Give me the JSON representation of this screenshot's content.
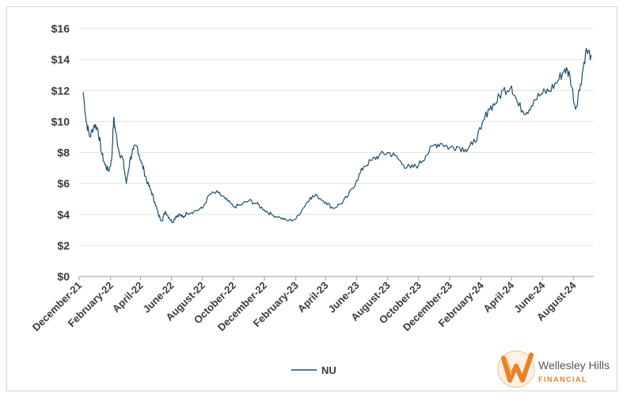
{
  "chart_data": {
    "type": "line",
    "ylim": [
      0,
      16
    ],
    "ytick_values": [
      0,
      2,
      4,
      6,
      8,
      10,
      12,
      14,
      16
    ],
    "ytick_labels": [
      "$0",
      "$2",
      "$4",
      "$6",
      "$8",
      "$10",
      "$12",
      "$14",
      "$16"
    ],
    "xtick_labels": [
      "December-21",
      "February-22",
      "April-22",
      "June-22",
      "August-22",
      "October-22",
      "December-22",
      "February-23",
      "April-23",
      "June-23",
      "August-23",
      "October-23",
      "December-23",
      "February-24",
      "April-24",
      "June-24",
      "August-24"
    ],
    "grid": "horizontal",
    "legend_position": "bottom-center",
    "line_color": "#1f4e6b",
    "series": [
      {
        "name": "NU",
        "x": [
          "2021-12-09",
          "2021-12-15",
          "2021-12-22",
          "2021-12-31",
          "2022-01-07",
          "2022-01-14",
          "2022-01-21",
          "2022-01-28",
          "2022-02-03",
          "2022-02-07",
          "2022-02-11",
          "2022-02-18",
          "2022-02-25",
          "2022-03-04",
          "2022-03-11",
          "2022-03-18",
          "2022-03-25",
          "2022-04-01",
          "2022-04-08",
          "2022-04-15",
          "2022-04-22",
          "2022-04-29",
          "2022-05-06",
          "2022-05-13",
          "2022-05-20",
          "2022-05-27",
          "2022-06-03",
          "2022-06-10",
          "2022-06-17",
          "2022-06-24",
          "2022-07-01",
          "2022-07-15",
          "2022-08-01",
          "2022-08-15",
          "2022-09-01",
          "2022-09-15",
          "2022-10-01",
          "2022-10-15",
          "2022-11-01",
          "2022-11-15",
          "2022-12-01",
          "2022-12-15",
          "2023-01-01",
          "2023-01-15",
          "2023-02-01",
          "2023-02-15",
          "2023-03-01",
          "2023-03-15",
          "2023-04-01",
          "2023-04-15",
          "2023-05-01",
          "2023-05-15",
          "2023-06-01",
          "2023-06-15",
          "2023-07-01",
          "2023-07-15",
          "2023-08-01",
          "2023-08-15",
          "2023-09-01",
          "2023-09-15",
          "2023-10-01",
          "2023-10-15",
          "2023-11-01",
          "2023-11-15",
          "2023-12-01",
          "2023-12-15",
          "2024-01-01",
          "2024-01-15",
          "2024-02-01",
          "2024-02-15",
          "2024-03-01",
          "2024-03-15",
          "2024-04-01",
          "2024-04-15",
          "2024-05-01",
          "2024-05-15",
          "2024-06-01",
          "2024-06-15",
          "2024-07-01",
          "2024-07-15",
          "2024-07-25",
          "2024-08-05",
          "2024-08-15",
          "2024-08-25",
          "2024-09-05"
        ],
        "values": [
          11.9,
          10.0,
          9.0,
          9.8,
          9.5,
          8.0,
          7.2,
          6.8,
          7.5,
          10.2,
          9.3,
          8.0,
          7.6,
          6.0,
          7.5,
          8.2,
          8.4,
          7.5,
          6.8,
          6.0,
          5.5,
          4.8,
          4.0,
          3.6,
          4.2,
          3.8,
          3.5,
          3.9,
          4.0,
          3.8,
          4.1,
          4.2,
          4.4,
          5.3,
          5.4,
          5.0,
          4.5,
          4.6,
          4.9,
          4.7,
          4.3,
          4.0,
          3.8,
          3.6,
          3.7,
          4.4,
          5.1,
          5.2,
          4.8,
          4.4,
          4.7,
          5.2,
          6.2,
          7.1,
          7.5,
          7.8,
          8.0,
          7.8,
          7.2,
          7.0,
          7.2,
          7.8,
          8.5,
          8.6,
          8.3,
          8.4,
          8.2,
          8.5,
          9.5,
          10.8,
          11.2,
          12.0,
          12.3,
          11.0,
          10.6,
          11.4,
          11.8,
          12.0,
          12.6,
          13.4,
          13.0,
          10.8,
          12.4,
          14.5,
          14.3
        ]
      }
    ]
  },
  "logo": {
    "line1": "Wellesley Hills",
    "line2": "FINANCIAL",
    "colors": {
      "primary": "#e8812a",
      "secondary": "#f3b34a",
      "text": "#555555"
    }
  }
}
